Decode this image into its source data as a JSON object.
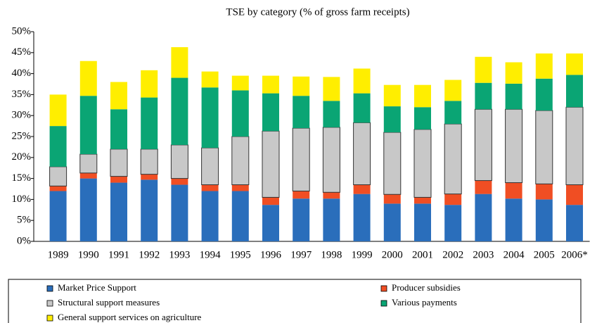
{
  "chart_data": {
    "type": "stacked_bar",
    "title": "TSE by category (% of gross farm receipts)",
    "categories": [
      "1989",
      "1990",
      "1991",
      "1992",
      "1993",
      "1994",
      "1995",
      "1996",
      "1997",
      "1998",
      "1999",
      "2000",
      "2001",
      "2002",
      "2003",
      "2004",
      "2005",
      "2006*"
    ],
    "series": [
      {
        "name": "Market Price Support",
        "color": "#2a6ebb",
        "values": [
          12,
          15,
          14,
          14.7,
          13.5,
          12,
          12,
          8.7,
          10.2,
          10.2,
          11.3,
          9,
          9,
          8.7,
          11.3,
          10.2,
          10,
          8.7
        ]
      },
      {
        "name": "Producer subsidies",
        "color": "#f04e23",
        "values": [
          1.2,
          1.3,
          1.5,
          1.3,
          1.5,
          1.5,
          1.5,
          1.8,
          1.8,
          1.5,
          2.2,
          2.2,
          1.5,
          2.6,
          3.2,
          3.8,
          3.7,
          4.8
        ]
      },
      {
        "name": "Structural support measures",
        "color": "#c8c8c8",
        "values": [
          4.6,
          4.5,
          6.5,
          6,
          8,
          8.8,
          11.5,
          15.8,
          15,
          15.5,
          14.8,
          14.8,
          16.2,
          16.7,
          17,
          17.5,
          17.5,
          18.5
        ]
      },
      {
        "name": "Various payments",
        "color": "#0aa574",
        "values": [
          9.7,
          13.9,
          9.5,
          12.3,
          16,
          14.4,
          11,
          9,
          7.7,
          6.3,
          7,
          6.2,
          5.3,
          5.5,
          6.3,
          6.1,
          7.6,
          7.7
        ]
      },
      {
        "name": "General support services on agriculture",
        "color": "#ffee00",
        "values": [
          7.5,
          8.3,
          6.5,
          6.5,
          7.3,
          3.8,
          3.5,
          4.2,
          4.6,
          5.7,
          5.9,
          5.1,
          5.3,
          5,
          6.2,
          5.1,
          6,
          5.1
        ]
      }
    ],
    "ylim": [
      0,
      50
    ],
    "yticks": [
      {
        "value": 0,
        "label": "0%"
      },
      {
        "value": 5,
        "label": "5%"
      },
      {
        "value": 10,
        "label": "10%"
      },
      {
        "value": 15,
        "label": "15%"
      },
      {
        "value": 20,
        "label": "20%"
      },
      {
        "value": 25,
        "label": "25%"
      },
      {
        "value": 30,
        "label": "30%"
      },
      {
        "value": 35,
        "label": "35%"
      },
      {
        "value": 40,
        "label": "40%"
      },
      {
        "value": 45,
        "label": "45%"
      },
      {
        "value": 50,
        "label": "50%"
      }
    ]
  }
}
